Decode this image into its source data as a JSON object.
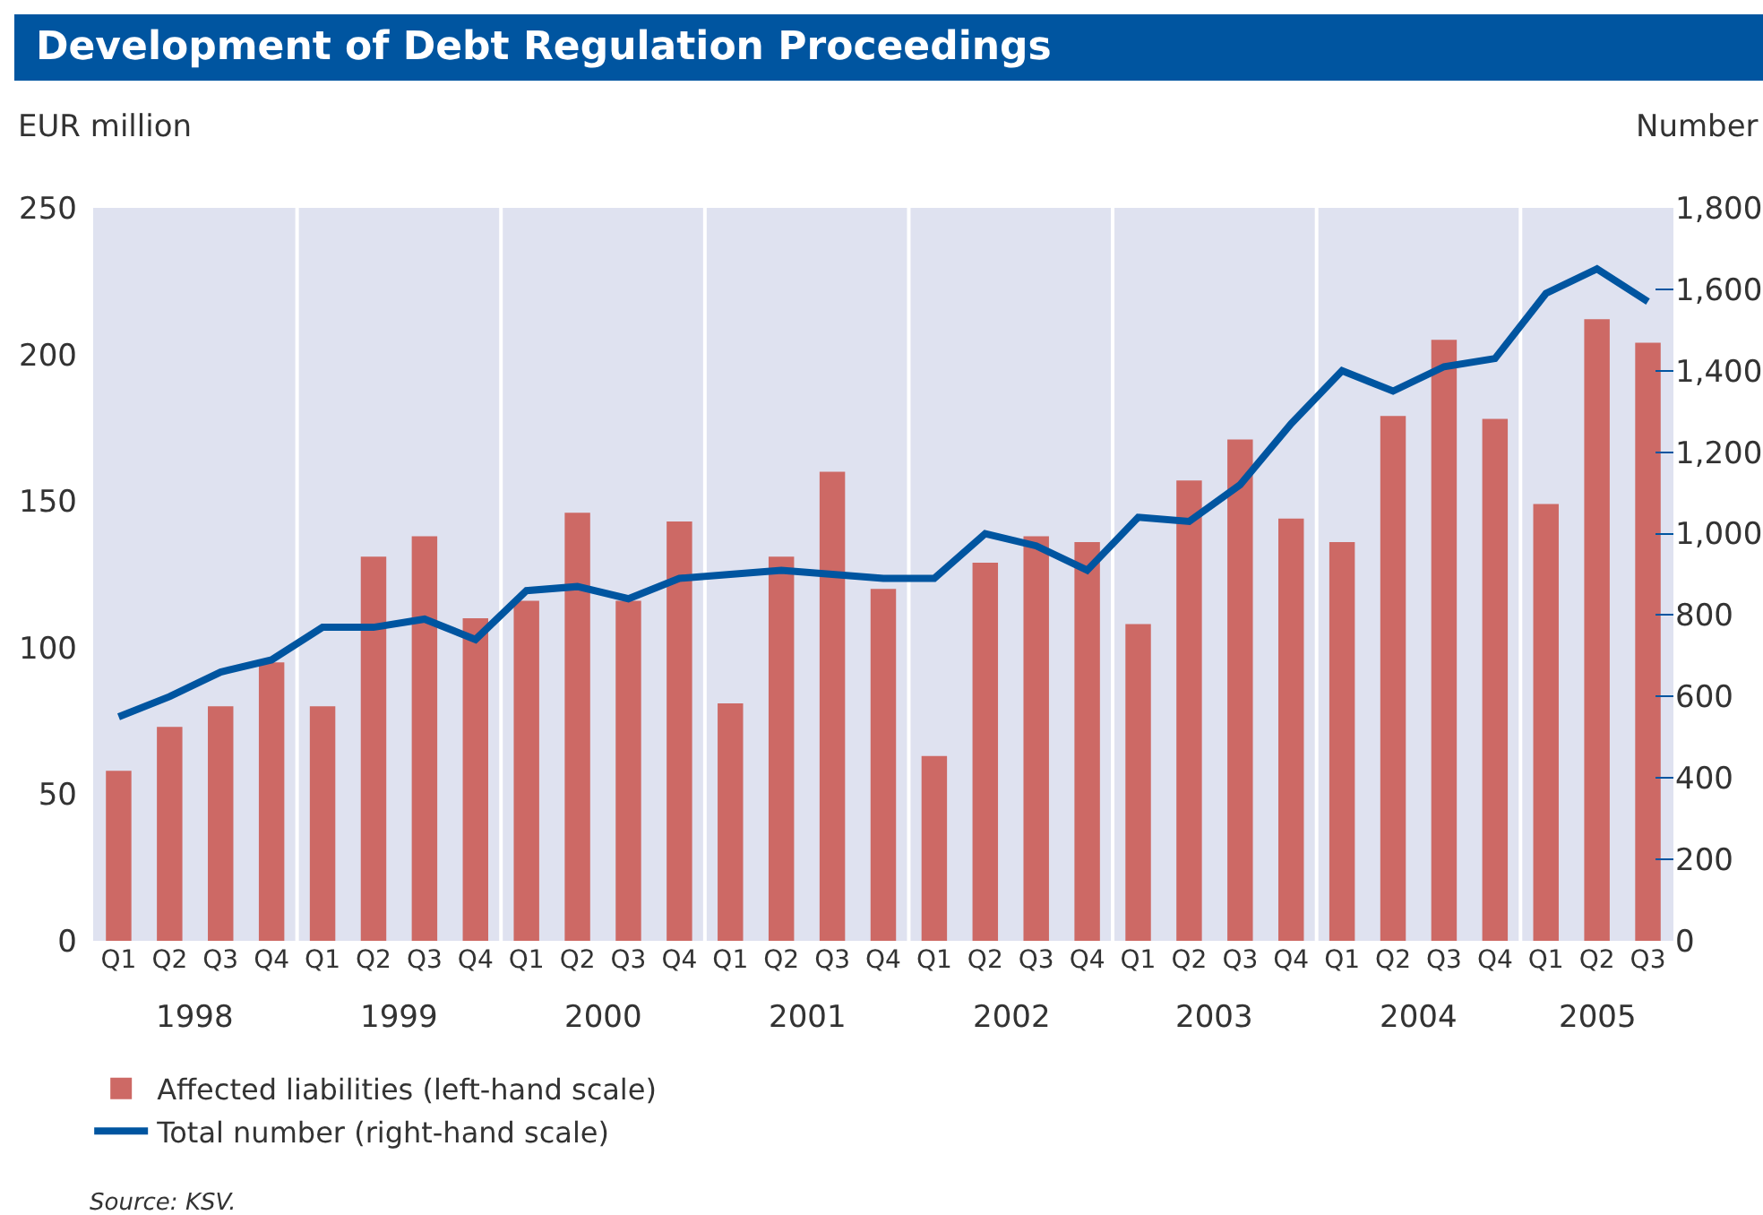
{
  "chart_data": {
    "type": "bar",
    "title": "Development of Debt Regulation Proceedings",
    "ylabel": "EUR million",
    "y2label": "Number",
    "categories": [
      "Q1",
      "Q2",
      "Q3",
      "Q4",
      "Q1",
      "Q2",
      "Q3",
      "Q4",
      "Q1",
      "Q2",
      "Q3",
      "Q4",
      "Q1",
      "Q2",
      "Q3",
      "Q4",
      "Q1",
      "Q2",
      "Q3",
      "Q4",
      "Q1",
      "Q2",
      "Q3",
      "Q4",
      "Q1",
      "Q2",
      "Q3",
      "Q4",
      "Q1",
      "Q2",
      "Q3"
    ],
    "series": [
      {
        "name": "Affected liabilities (left-hand scale)",
        "color": "#cd6965",
        "values": [
          58,
          73,
          80,
          95,
          80,
          131,
          138,
          110,
          116,
          146,
          116,
          143,
          81,
          131,
          160,
          120,
          63,
          129,
          138,
          136,
          108,
          157,
          171,
          144,
          136,
          179,
          205,
          178,
          149,
          212,
          204
        ]
      },
      {
        "name": "Total number (right-hand scale)",
        "type": "line",
        "axis": "y2",
        "color": "#0055a0",
        "values": [
          550,
          600,
          660,
          690,
          770,
          770,
          790,
          740,
          860,
          870,
          840,
          890,
          900,
          910,
          900,
          890,
          890,
          1000,
          970,
          910,
          1040,
          1030,
          1120,
          1270,
          1400,
          1350,
          1410,
          1430,
          1590,
          1650,
          1570
        ]
      }
    ],
    "ylim": [
      0,
      250
    ],
    "yticks": [
      0,
      50,
      100,
      150,
      200,
      250
    ],
    "y2lim": [
      0,
      1800
    ],
    "y2ticks": [
      {
        "value": 0,
        "label": "0"
      },
      {
        "value": 200,
        "label": "200"
      },
      {
        "value": 400,
        "label": "400"
      },
      {
        "value": 600,
        "label": "600"
      },
      {
        "value": 800,
        "label": "800"
      },
      {
        "value": 1000,
        "label": "1,000"
      },
      {
        "value": 1200,
        "label": "1,200"
      },
      {
        "value": 1400,
        "label": "1,400"
      },
      {
        "value": 1600,
        "label": "1,600"
      },
      {
        "value": 1800,
        "label": "1,800"
      }
    ],
    "annotations": [
      "1998",
      "1999",
      "2000",
      "2001",
      "2002",
      "2003",
      "2004",
      "2005",
      "Source: KSV."
    ],
    "grid": "x",
    "legend": "bottom left",
    "line_style": "solid",
    "marker": "none"
  }
}
